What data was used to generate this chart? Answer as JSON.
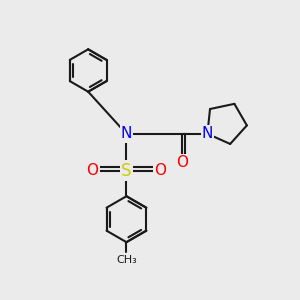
{
  "bg_color": "#ebebeb",
  "bond_color": "#1a1a1a",
  "N_color": "#0000ff",
  "O_color": "#ff0000",
  "S_color": "#cccc00",
  "line_width": 1.5,
  "font_size": 10,
  "figsize": [
    3.0,
    3.0
  ],
  "dpi": 100,
  "xlim": [
    0,
    10
  ],
  "ylim": [
    0,
    10
  ]
}
